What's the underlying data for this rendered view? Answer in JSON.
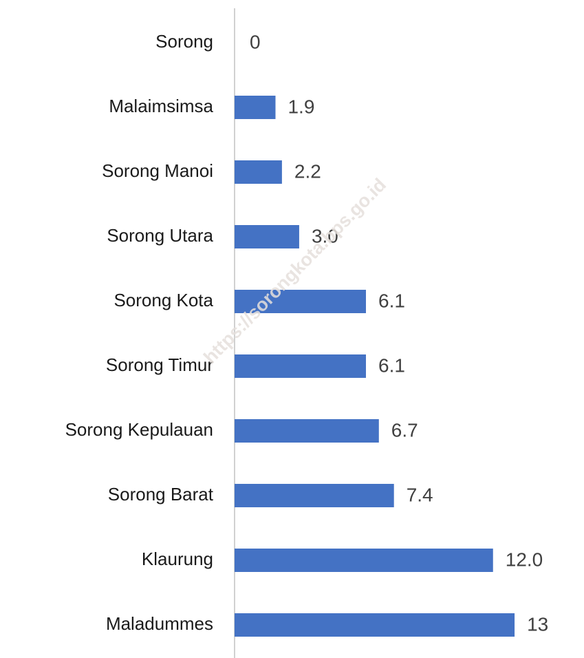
{
  "chart_data": {
    "type": "bar",
    "orientation": "horizontal",
    "categories": [
      "Sorong",
      "Malaimsimsa",
      "Sorong Manoi",
      "Sorong Utara",
      "Sorong Kota",
      "Sorong Timur",
      "Sorong Kepulauan",
      "Sorong Barat",
      "Klaurung",
      "Maladummes"
    ],
    "values": [
      0,
      1.9,
      2.2,
      3.0,
      6.1,
      6.1,
      6.7,
      7.4,
      12.0,
      13
    ],
    "value_labels": [
      "0",
      "1.9",
      "2.2",
      "3.0",
      "6.1",
      "6.1",
      "6.7",
      "7.4",
      "12.0",
      "13"
    ],
    "color": "#4472c4",
    "xlim": [
      0,
      16
    ],
    "watermark": "https://sorongkota.bps.go.id"
  }
}
